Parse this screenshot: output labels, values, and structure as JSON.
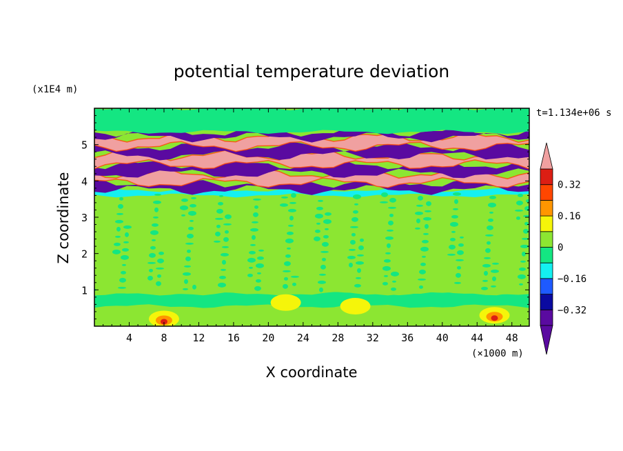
{
  "chart_data": {
    "type": "heatmap",
    "title": "potential temperature deviation",
    "xlabel": "X coordinate",
    "ylabel": "Z coordinate",
    "x_unit": "(×1000 m)",
    "y_unit": "(x1E4 m)",
    "time_label": "t=1.134e+06 s",
    "xlim": [
      0,
      50
    ],
    "ylim": [
      0,
      6
    ],
    "x_ticks": [
      4,
      8,
      12,
      16,
      20,
      24,
      28,
      32,
      36,
      40,
      44,
      48
    ],
    "y_ticks": [
      1,
      2,
      3,
      4,
      5
    ],
    "colorbar": {
      "levels": [
        -0.4,
        -0.32,
        -0.24,
        -0.16,
        -0.08,
        0,
        0.08,
        0.16,
        0.24,
        0.32,
        0.4
      ],
      "labels": [
        {
          "value": 0.32,
          "text": "0.32"
        },
        {
          "value": 0.16,
          "text": "0.16"
        },
        {
          "value": 0,
          "text": "0"
        },
        {
          "value": -0.16,
          "text": "−0.16"
        },
        {
          "value": -0.32,
          "text": "−0.32"
        }
      ],
      "colors": [
        "#5a0aa0",
        "#0a0aa0",
        "#1e5aff",
        "#14f0f0",
        "#14e682",
        "#8ce632",
        "#f5f50a",
        "#ff9600",
        "#ff4600",
        "#dc1e14",
        "#f0a0a0"
      ]
    },
    "bands": [
      {
        "z": [
          0.0,
          0.55
        ],
        "band": "near-zero",
        "label": "0 to 0.08"
      },
      {
        "z": [
          0.55,
          0.9
        ],
        "band": "slightly negative",
        "label": "-0.08 to 0"
      },
      {
        "z": [
          0.9,
          3.6
        ],
        "band": "near-zero",
        "label": "0 to 0.08"
      },
      {
        "z": [
          3.6,
          3.75
        ],
        "band": "negative",
        "label": "-0.16 to -0.08"
      },
      {
        "z": [
          3.75,
          3.95
        ],
        "band": "strong negative",
        "label": "< -0.4"
      },
      {
        "z": [
          3.95,
          4.2
        ],
        "band": "strong positive",
        "label": "> 0.4"
      },
      {
        "z": [
          4.2,
          4.45
        ],
        "band": "strong negative",
        "label": "< -0.4"
      },
      {
        "z": [
          4.45,
          4.7
        ],
        "band": "strong positive",
        "label": "> 0.4"
      },
      {
        "z": [
          4.7,
          4.95
        ],
        "band": "strong negative",
        "label": "< -0.4"
      },
      {
        "z": [
          4.95,
          5.2
        ],
        "band": "strong positive",
        "label": "> 0.4"
      },
      {
        "z": [
          5.2,
          5.35
        ],
        "band": "strong negative",
        "label": "< -0.4"
      },
      {
        "z": [
          5.35,
          6.0
        ],
        "band": "slightly negative",
        "label": "-0.08 to 0"
      }
    ],
    "near_surface_warm_spots": [
      {
        "x": 8,
        "z": 0.2,
        "value": 0.3
      },
      {
        "x": 22,
        "z": 0.65,
        "value": 0.15
      },
      {
        "x": 30,
        "z": 0.55,
        "value": 0.15
      },
      {
        "x": 46,
        "z": 0.3,
        "value": 0.3
      }
    ]
  }
}
